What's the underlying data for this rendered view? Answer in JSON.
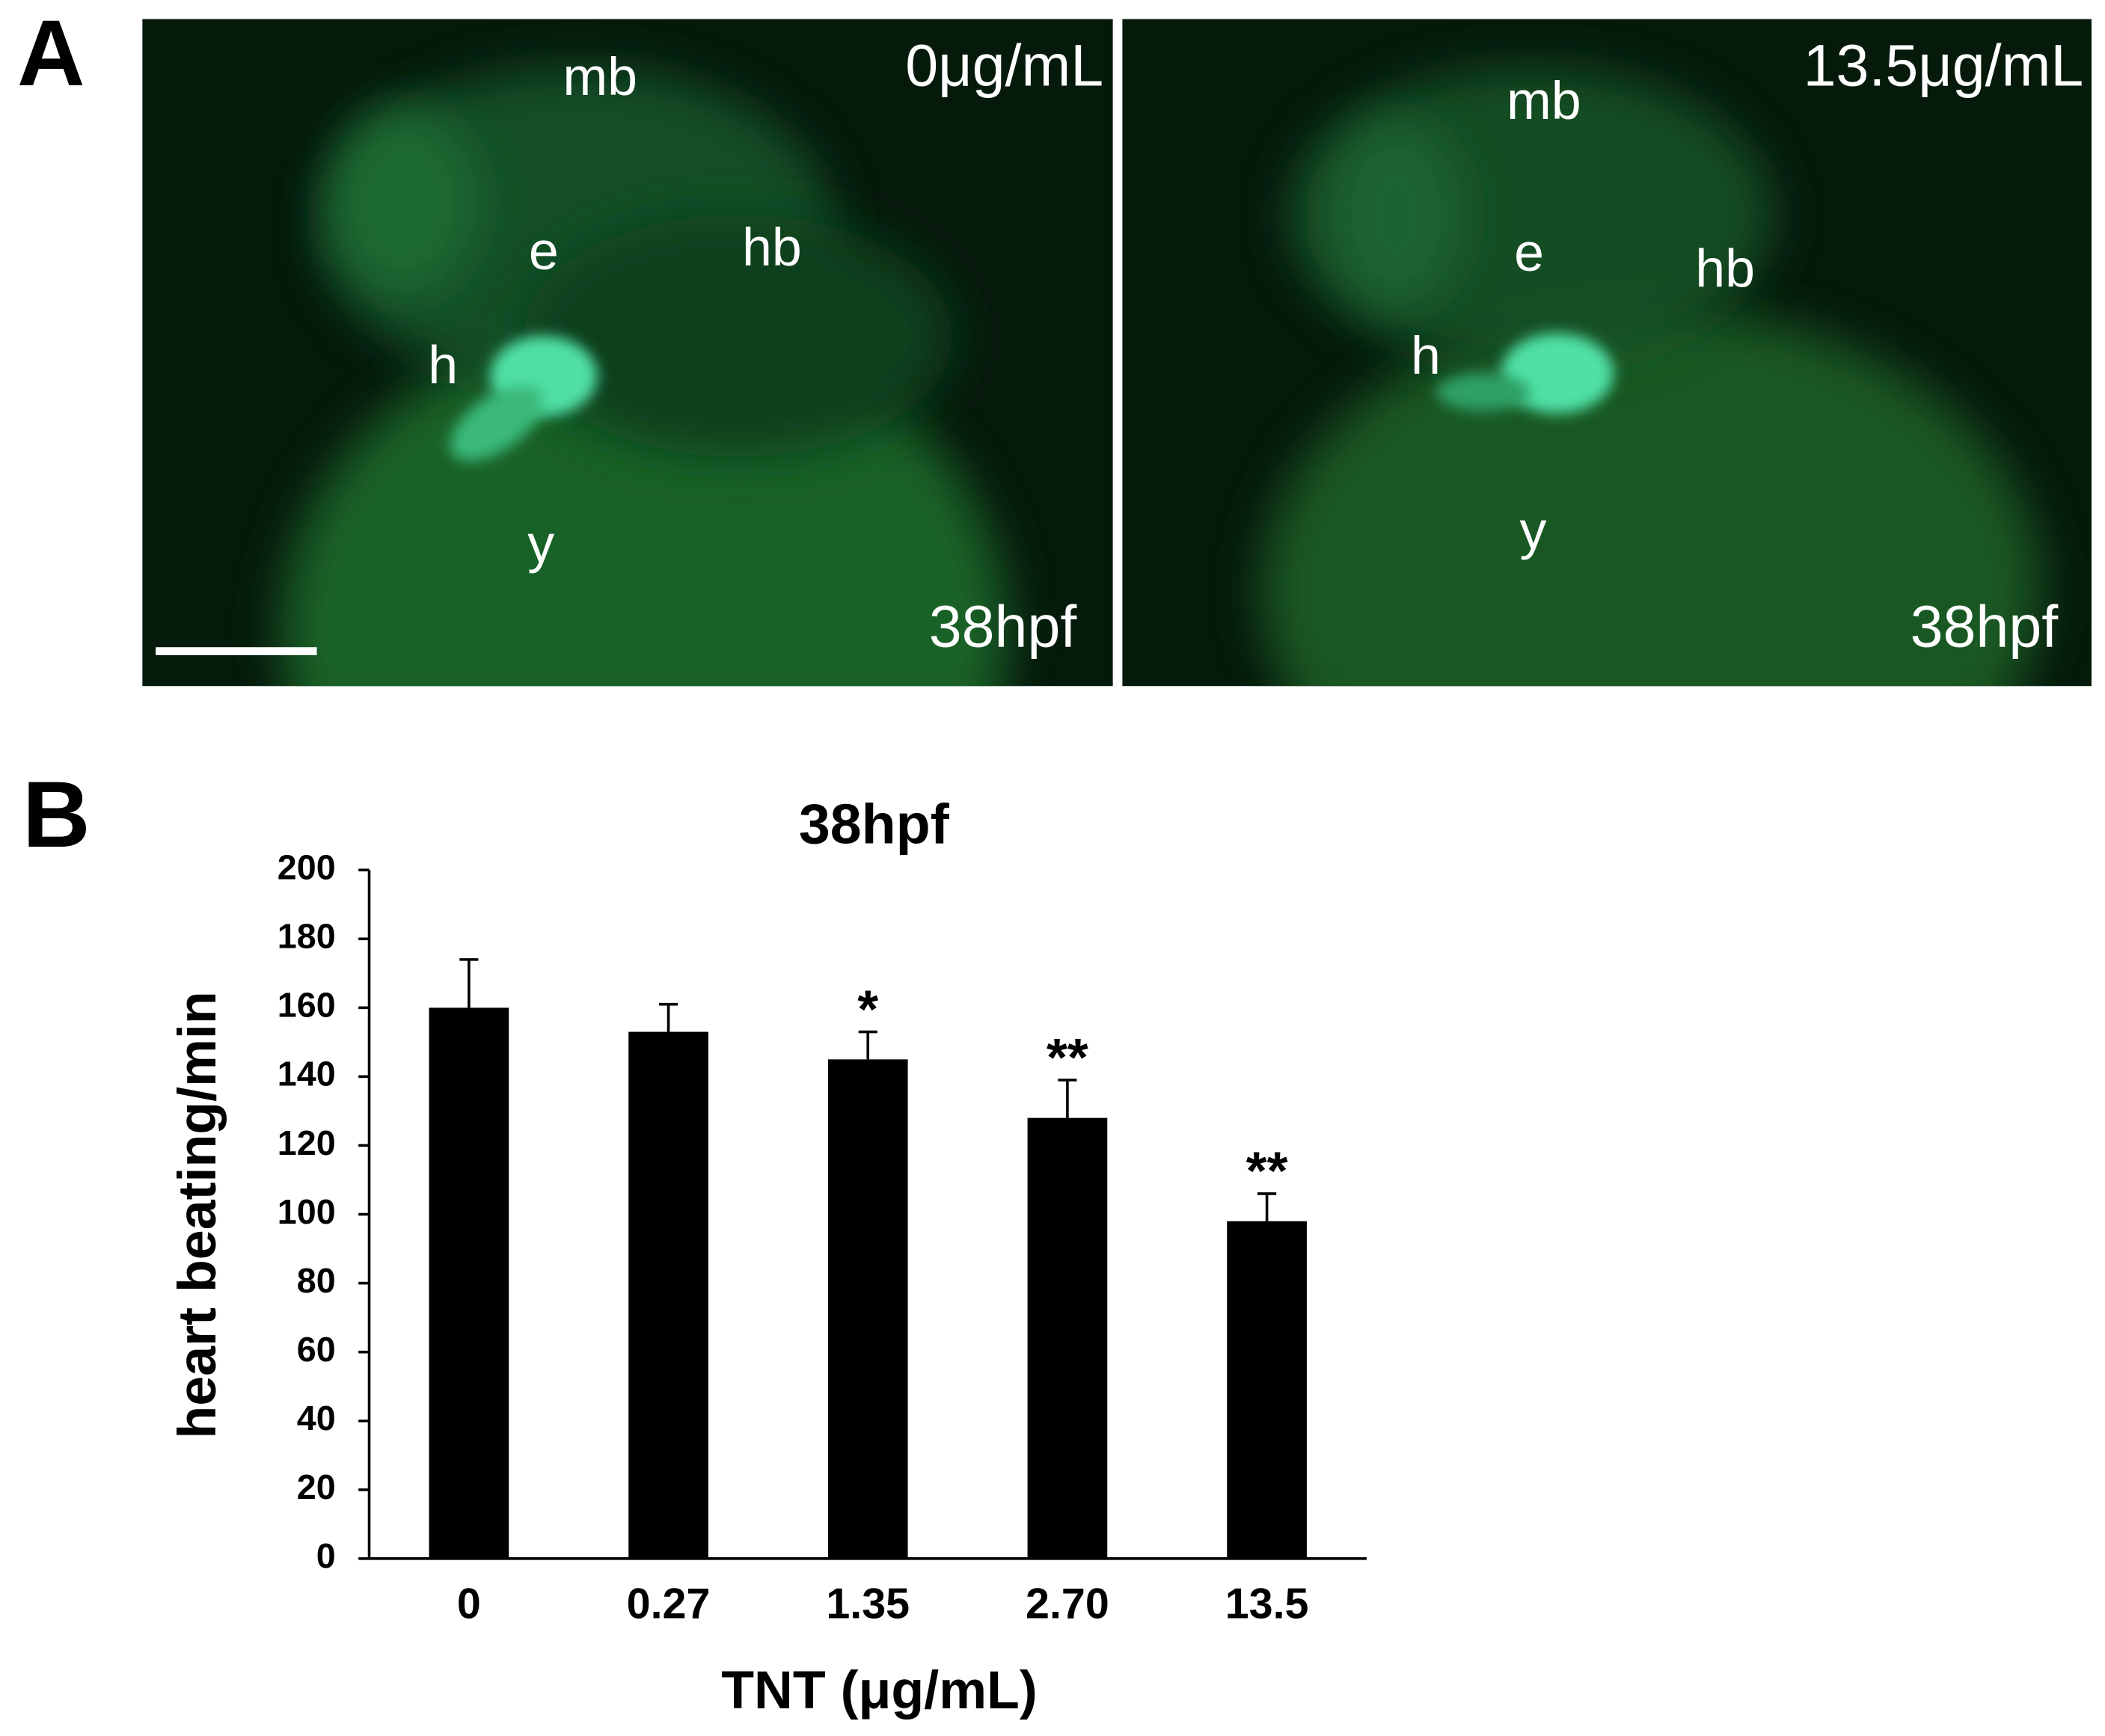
{
  "panel_labels": [
    "A",
    "B"
  ],
  "panel_a": {
    "images": [
      {
        "concentration": "0μg/mL",
        "stage": "38hpf",
        "labels": [
          "mb",
          "e",
          "hb",
          "h",
          "y"
        ]
      },
      {
        "concentration": "13.5μg/mL",
        "stage": "38hpf",
        "labels": [
          "mb",
          "e",
          "hb",
          "h",
          "y"
        ]
      }
    ]
  },
  "chart_data": {
    "type": "bar",
    "title": "38hpf",
    "x_label": "TNT (μg/mL)",
    "y_label": "heart beating/min",
    "categories": [
      "0",
      "0.27",
      "1.35",
      "2.70",
      "13.5"
    ],
    "values": [
      160,
      153,
      145,
      128,
      98
    ],
    "errors": [
      14,
      8,
      8,
      11,
      8
    ],
    "significance": [
      null,
      null,
      "*",
      "**",
      "**"
    ],
    "color": "#000000",
    "ylim": [
      0,
      200
    ],
    "yticks": [
      0,
      20,
      40,
      60,
      80,
      100,
      120,
      140,
      160,
      180,
      200
    ],
    "grid": false
  }
}
